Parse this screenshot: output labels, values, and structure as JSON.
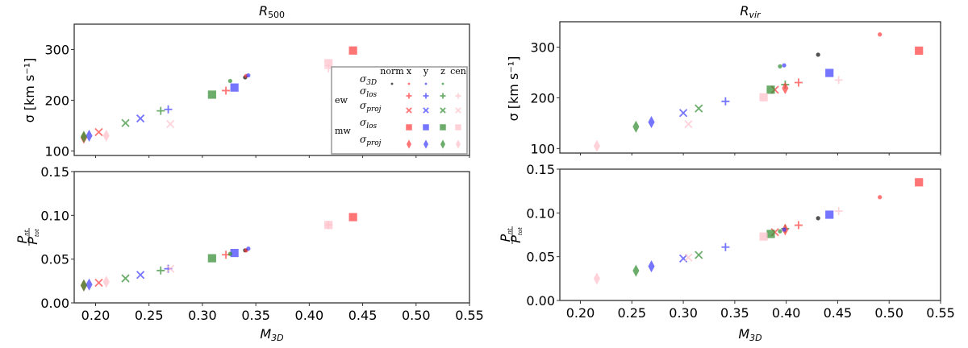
{
  "colors": {
    "norm": "#333333",
    "x": "#ff3b3b",
    "y": "#3b3bff",
    "z": "#2e8b2e",
    "cen": "#ffc0cb"
  },
  "legend": {
    "columns": [
      "norm",
      "x",
      "y",
      "z",
      "cen"
    ],
    "groups": [
      "ew",
      "mw"
    ],
    "rows": [
      {
        "q": "σ",
        "sub": "3D"
      },
      {
        "q": "σ",
        "sub": "los"
      },
      {
        "q": "σ",
        "sub": "proj"
      },
      {
        "q": "σ",
        "sub": "los"
      },
      {
        "q": "σ",
        "sub": "proj"
      }
    ]
  },
  "chart_data": [
    {
      "type": "scatter",
      "title": {
        "main": "R",
        "sub": "500"
      },
      "xlabel": {
        "main": "M",
        "sub": "3D"
      },
      "xlim": [
        0.18,
        0.55
      ],
      "xticks": [
        "0.20",
        "0.25",
        "0.30",
        "0.35",
        "0.40",
        "0.45",
        "0.50",
        "0.55"
      ],
      "upper": {
        "ylabel": "σ [km s⁻¹]",
        "ylim": [
          91,
          350
        ],
        "yticks": [
          "100",
          "200",
          "300"
        ]
      },
      "lower": {
        "ylabel": {
          "num": "P",
          "num_sub": "nt",
          "den": "P",
          "den_sub": "tot"
        },
        "ylim": [
          0,
          0.15
        ],
        "yticks": [
          "0.00",
          "0.05",
          "0.10",
          "0.15"
        ]
      },
      "legend_placement": "lower-right of upper panel",
      "points": [
        {
          "group": "norm",
          "quantity": "σ_3D",
          "direction": "norm",
          "x": 0.34,
          "sigma": 245,
          "ratio": 0.06
        },
        {
          "group": "norm",
          "quantity": "σ_3D",
          "direction": "x",
          "x": 0.341,
          "sigma": 248,
          "ratio": 0.06
        },
        {
          "group": "norm",
          "quantity": "σ_3D",
          "direction": "y",
          "x": 0.343,
          "sigma": 249,
          "ratio": 0.062
        },
        {
          "group": "norm",
          "quantity": "σ_3D",
          "direction": "z",
          "x": 0.326,
          "sigma": 238,
          "ratio": 0.056
        },
        {
          "group": "ew",
          "quantity": "σ_los",
          "direction": "x",
          "x": 0.322,
          "sigma": 219,
          "ratio": 0.055
        },
        {
          "group": "ew",
          "quantity": "σ_los",
          "direction": "y",
          "x": 0.268,
          "sigma": 182,
          "ratio": 0.039
        },
        {
          "group": "ew",
          "quantity": "σ_los",
          "direction": "z",
          "x": 0.261,
          "sigma": 179,
          "ratio": 0.037
        },
        {
          "group": "ew",
          "quantity": "σ_los",
          "direction": "cen",
          "x": 0.418,
          "sigma": 263,
          "ratio": 0.089
        },
        {
          "group": "ew",
          "quantity": "σ_proj",
          "direction": "x",
          "x": 0.203,
          "sigma": 137,
          "ratio": 0.023
        },
        {
          "group": "ew",
          "quantity": "σ_proj",
          "direction": "y",
          "x": 0.242,
          "sigma": 164,
          "ratio": 0.032
        },
        {
          "group": "ew",
          "quantity": "σ_proj",
          "direction": "z",
          "x": 0.228,
          "sigma": 155,
          "ratio": 0.028
        },
        {
          "group": "ew",
          "quantity": "σ_proj",
          "direction": "cen",
          "x": 0.27,
          "sigma": 153,
          "ratio": 0.039
        },
        {
          "group": "mw",
          "quantity": "σ_los",
          "direction": "x",
          "x": 0.441,
          "sigma": 298,
          "ratio": 0.098
        },
        {
          "group": "mw",
          "quantity": "σ_los",
          "direction": "y",
          "x": 0.33,
          "sigma": 225,
          "ratio": 0.057
        },
        {
          "group": "mw",
          "quantity": "σ_los",
          "direction": "z",
          "x": 0.309,
          "sigma": 211,
          "ratio": 0.051
        },
        {
          "group": "mw",
          "quantity": "σ_los",
          "direction": "cen",
          "x": 0.418,
          "sigma": 273,
          "ratio": 0.089
        },
        {
          "group": "mw",
          "quantity": "σ_proj",
          "direction": "x",
          "x": 0.189,
          "sigma": 126,
          "ratio": 0.02
        },
        {
          "group": "mw",
          "quantity": "σ_proj",
          "direction": "y",
          "x": 0.194,
          "sigma": 130,
          "ratio": 0.021
        },
        {
          "group": "mw",
          "quantity": "σ_proj",
          "direction": "z",
          "x": 0.189,
          "sigma": 128,
          "ratio": 0.02
        },
        {
          "group": "mw",
          "quantity": "σ_proj",
          "direction": "cen",
          "x": 0.21,
          "sigma": 130,
          "ratio": 0.024
        }
      ]
    },
    {
      "type": "scatter",
      "title": {
        "main": "R",
        "sub": "vir"
      },
      "xlabel": {
        "main": "M",
        "sub": "3D"
      },
      "xlim": [
        0.18,
        0.55
      ],
      "xticks": [
        "0.20",
        "0.25",
        "0.30",
        "0.35",
        "0.40",
        "0.45",
        "0.50",
        "0.55"
      ],
      "upper": {
        "ylabel": "σ [km s⁻¹]",
        "ylim": [
          91,
          350
        ],
        "yticks": [
          "100",
          "200",
          "300"
        ]
      },
      "lower": {
        "ylabel": {
          "num": "P",
          "num_sub": "nt",
          "den": "P",
          "den_sub": "tot"
        },
        "ylim": [
          0,
          0.15
        ],
        "yticks": [
          "0.00",
          "0.05",
          "0.10",
          "0.15"
        ]
      },
      "points": [
        {
          "group": "norm",
          "quantity": "σ_3D",
          "direction": "norm",
          "x": 0.431,
          "sigma": 285,
          "ratio": 0.094
        },
        {
          "group": "norm",
          "quantity": "σ_3D",
          "direction": "x",
          "x": 0.491,
          "sigma": 325,
          "ratio": 0.118
        },
        {
          "group": "norm",
          "quantity": "σ_3D",
          "direction": "y",
          "x": 0.398,
          "sigma": 264,
          "ratio": 0.081
        },
        {
          "group": "norm",
          "quantity": "σ_3D",
          "direction": "z",
          "x": 0.394,
          "sigma": 262,
          "ratio": 0.079
        },
        {
          "group": "ew",
          "quantity": "σ_los",
          "direction": "x",
          "x": 0.412,
          "sigma": 230,
          "ratio": 0.086
        },
        {
          "group": "ew",
          "quantity": "σ_los",
          "direction": "y",
          "x": 0.341,
          "sigma": 193,
          "ratio": 0.061
        },
        {
          "group": "ew",
          "quantity": "σ_los",
          "direction": "z",
          "x": 0.399,
          "sigma": 226,
          "ratio": 0.082
        },
        {
          "group": "ew",
          "quantity": "σ_los",
          "direction": "cen",
          "x": 0.451,
          "sigma": 235,
          "ratio": 0.102
        },
        {
          "group": "ew",
          "quantity": "σ_proj",
          "direction": "x",
          "x": 0.389,
          "sigma": 216,
          "ratio": 0.078
        },
        {
          "group": "ew",
          "quantity": "σ_proj",
          "direction": "y",
          "x": 0.3,
          "sigma": 170,
          "ratio": 0.048
        },
        {
          "group": "ew",
          "quantity": "σ_proj",
          "direction": "z",
          "x": 0.315,
          "sigma": 179,
          "ratio": 0.052
        },
        {
          "group": "ew",
          "quantity": "σ_proj",
          "direction": "cen",
          "x": 0.305,
          "sigma": 148,
          "ratio": 0.049
        },
        {
          "group": "mw",
          "quantity": "σ_los",
          "direction": "x",
          "x": 0.529,
          "sigma": 293,
          "ratio": 0.135
        },
        {
          "group": "mw",
          "quantity": "σ_los",
          "direction": "y",
          "x": 0.442,
          "sigma": 249,
          "ratio": 0.098
        },
        {
          "group": "mw",
          "quantity": "σ_los",
          "direction": "z",
          "x": 0.385,
          "sigma": 216,
          "ratio": 0.076
        },
        {
          "group": "mw",
          "quantity": "σ_los",
          "direction": "cen",
          "x": 0.378,
          "sigma": 201,
          "ratio": 0.073
        },
        {
          "group": "mw",
          "quantity": "σ_proj",
          "direction": "x",
          "x": 0.399,
          "sigma": 219,
          "ratio": 0.081
        },
        {
          "group": "mw",
          "quantity": "σ_proj",
          "direction": "y",
          "x": 0.269,
          "sigma": 152,
          "ratio": 0.039
        },
        {
          "group": "mw",
          "quantity": "σ_proj",
          "direction": "z",
          "x": 0.254,
          "sigma": 143,
          "ratio": 0.034
        },
        {
          "group": "mw",
          "quantity": "σ_proj",
          "direction": "cen",
          "x": 0.216,
          "sigma": 105,
          "ratio": 0.025
        }
      ]
    }
  ]
}
